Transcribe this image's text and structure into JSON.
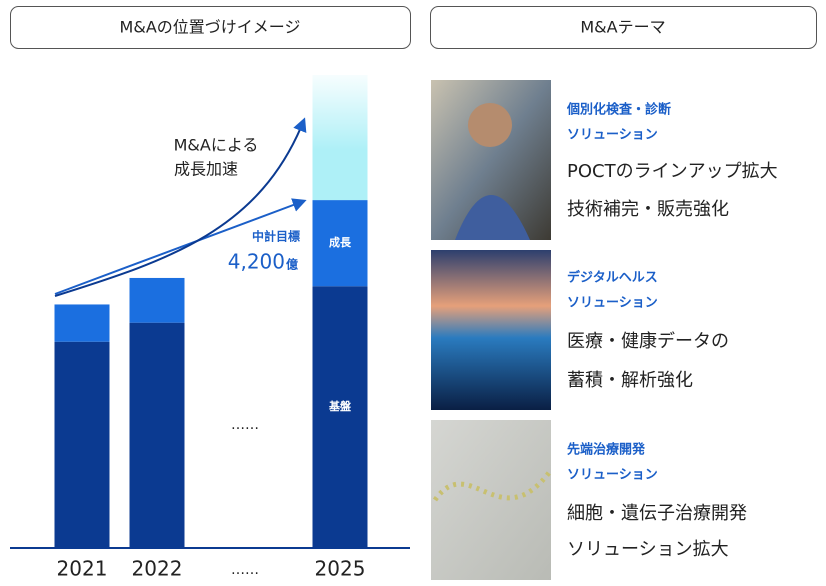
{
  "left_header": "M&Aの位置づけイメージ",
  "right_header": "M&Aテーマ",
  "chart_data": {
    "type": "stacked_bar",
    "categories": [
      "2021",
      "2022",
      "……",
      "2025"
    ],
    "series": [
      {
        "name": "基盤",
        "color": "#0b3a91",
        "values": [
          2490,
          2720,
          null,
          3160
        ]
      },
      {
        "name": "成長",
        "color": "#1b6fe0",
        "values": [
          450,
          540,
          null,
          1040
        ]
      },
      {
        "color": "#aef0f7",
        "values": [
          0,
          0,
          null,
          1510
        ]
      }
    ],
    "ylim": [
      0,
      5710
    ],
    "annotation": [
      "M&Aによる",
      "成長加速"
    ],
    "target": {
      "label": "中計目標",
      "value": {
        "value": 4200,
        "label": "4,200"
      },
      "unit": "億"
    }
  },
  "themes": [
    {
      "title": [
        "個別化検査・診断",
        "ソリューション"
      ],
      "desc": [
        "POCTのラインアップ拡大",
        "技術補完・販売強化"
      ]
    },
    {
      "title": [
        "デジタルヘルス",
        "ソリューション"
      ],
      "desc": [
        "医療・健康データの",
        "蓄積・解析強化"
      ]
    },
    {
      "title": [
        "先端治療開発",
        "ソリューション"
      ],
      "desc": [
        "細胞・遺伝子治療開発",
        "ソリューション拡大"
      ]
    }
  ]
}
